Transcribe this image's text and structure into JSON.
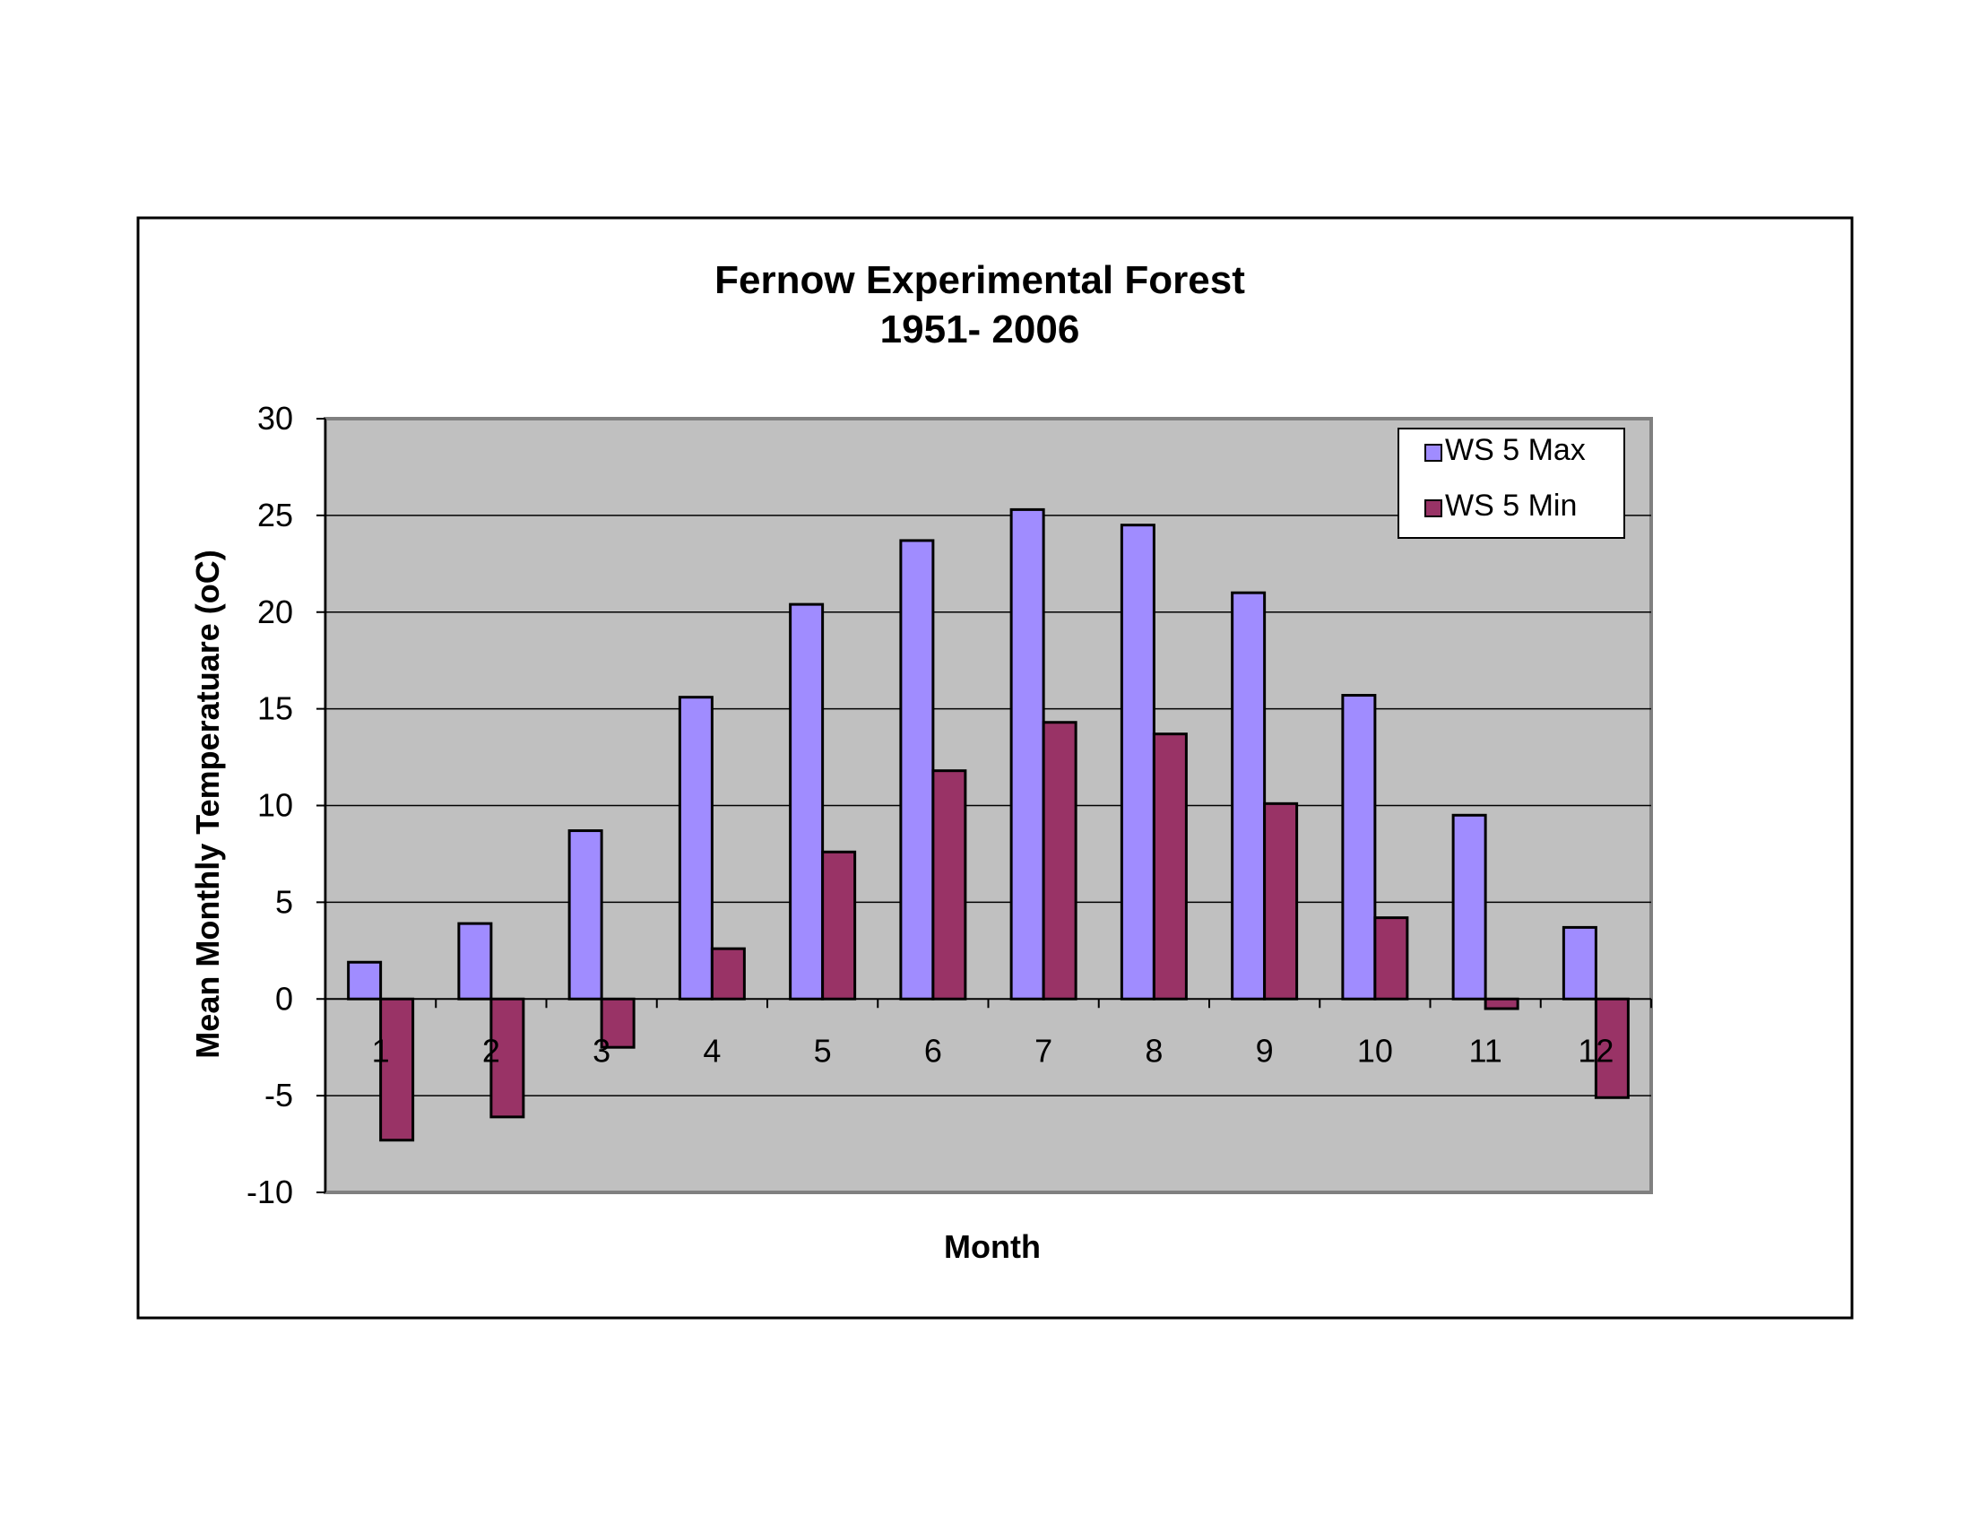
{
  "chart_data": {
    "type": "bar",
    "title": "Fernow Experimental Forest",
    "subtitle": "1951- 2006",
    "xlabel": "Month",
    "ylabel": "Mean Monthly Temperatuare (oC)",
    "ylim": [
      -10,
      30
    ],
    "yticks": [
      30,
      25,
      20,
      15,
      10,
      5,
      0,
      -5,
      -10
    ],
    "grid": true,
    "legend_position": "top-right",
    "categories": [
      "1",
      "2",
      "3",
      "4",
      "5",
      "6",
      "7",
      "8",
      "9",
      "10",
      "11",
      "12"
    ],
    "series": [
      {
        "name": "WS 5 Max",
        "color": "#a08cff",
        "values": [
          1.9,
          3.9,
          8.7,
          15.6,
          20.4,
          23.7,
          25.3,
          24.5,
          21.0,
          15.7,
          9.5,
          3.7
        ]
      },
      {
        "name": "WS 5 Min",
        "color": "#993366",
        "values": [
          -7.3,
          -6.1,
          -2.5,
          2.6,
          7.6,
          11.8,
          14.3,
          13.7,
          10.1,
          4.2,
          -0.5,
          -5.1
        ]
      }
    ],
    "colors": {
      "plot_background": "#c0c0c0",
      "gridline": "#000000",
      "frame": "#000000"
    }
  }
}
